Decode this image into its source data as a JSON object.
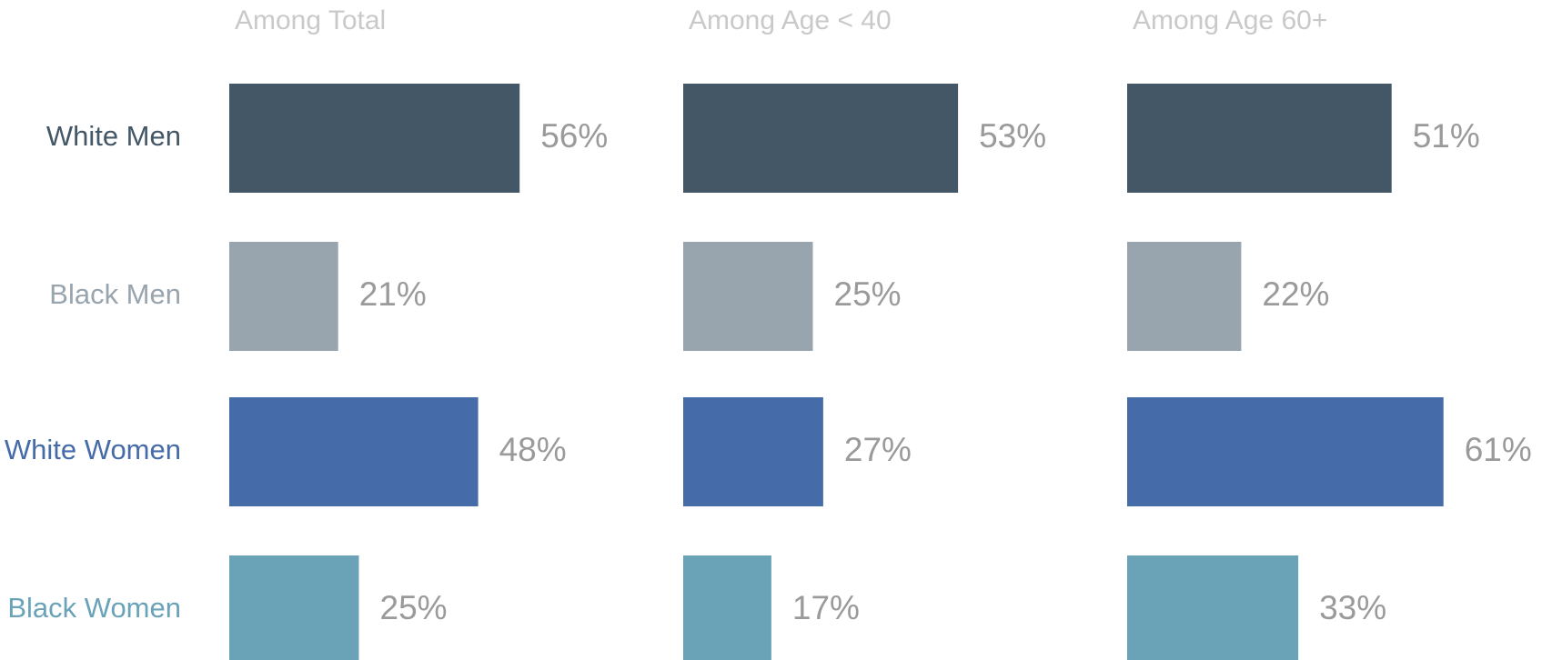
{
  "chart_data": {
    "type": "bar",
    "categories": [
      "White Men",
      "Black Men",
      "White Women",
      "Black Women"
    ],
    "colors": [
      "#435766",
      "#98a4ae",
      "#456ba8",
      "#6aa3b8"
    ],
    "panels": [
      {
        "title": "Among Total",
        "values": [
          56,
          21,
          48,
          25
        ],
        "value_labels": [
          "56%",
          "21%",
          "48%",
          "25%"
        ]
      },
      {
        "title": "Among Age < 40",
        "values": [
          53,
          25,
          27,
          17
        ],
        "value_labels": [
          "53%",
          "25%",
          "27%",
          "17%"
        ]
      },
      {
        "title": "Among Age 60+",
        "values": [
          51,
          22,
          61,
          33
        ],
        "value_labels": [
          "51%",
          "22%",
          "61%",
          "33%"
        ]
      }
    ]
  }
}
